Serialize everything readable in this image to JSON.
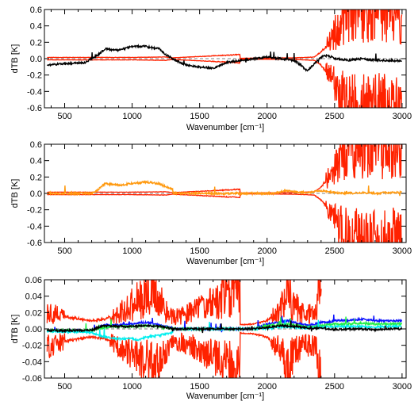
{
  "chart_data": [
    {
      "type": "line",
      "xlabel": "Wavenumber [cm⁻¹]",
      "ylabel": "dTB [K]",
      "xlim": [
        350,
        3030
      ],
      "ylim": [
        -0.6,
        0.6
      ],
      "xticks": [
        500,
        1000,
        1500,
        2000,
        2500,
        3000
      ],
      "yticks": [
        -0.6,
        -0.4,
        -0.2,
        0.0,
        0.2,
        0.4,
        0.6
      ],
      "ytick_labels": [
        "-0.6",
        "-0.4",
        "-0.2",
        "0.0",
        "0.2",
        "0.4",
        "0.6"
      ],
      "zero_line": true,
      "series": [
        {
          "color": "#ff2200",
          "style": "noise-envelope",
          "x": [
            370,
            700,
            1000,
            1250,
            1300,
            1800,
            1801,
            2200,
            2350,
            2400,
            2450,
            2500,
            2550,
            2600,
            2700,
            2800,
            2900,
            3000
          ],
          "y": [
            0.015,
            0.015,
            0.015,
            0.02,
            0.01,
            0.05,
            0.005,
            0.01,
            0.02,
            0.08,
            0.18,
            0.3,
            0.45,
            0.6,
            0.6,
            0.6,
            0.55,
            0.5
          ]
        },
        {
          "color": "#000000",
          "style": "signal",
          "x": [
            370,
            500,
            650,
            750,
            800,
            900,
            1000,
            1100,
            1200,
            1250,
            1300,
            1400,
            1500,
            1600,
            1700,
            1800,
            1900,
            2000,
            2100,
            2200,
            2250,
            2300,
            2350,
            2400,
            2450,
            2500,
            2600,
            2700,
            2800,
            2900,
            3000
          ],
          "y": [
            -0.08,
            -0.06,
            -0.05,
            0.05,
            0.12,
            0.1,
            0.15,
            0.15,
            0.12,
            0.05,
            0.0,
            -0.08,
            -0.1,
            -0.12,
            -0.05,
            -0.02,
            0.0,
            0.02,
            0.0,
            -0.02,
            -0.08,
            -0.15,
            -0.06,
            0.02,
            0.04,
            0.0,
            -0.02,
            0.0,
            -0.02,
            -0.02,
            -0.03
          ]
        }
      ]
    },
    {
      "type": "line",
      "xlabel": "Wavenumber [cm⁻¹]",
      "ylabel": "dTB [K]",
      "xlim": [
        350,
        3030
      ],
      "ylim": [
        -0.6,
        0.6
      ],
      "xticks": [
        500,
        1000,
        1500,
        2000,
        2500,
        3000
      ],
      "yticks": [
        -0.6,
        -0.4,
        -0.2,
        0.0,
        0.2,
        0.4,
        0.6
      ],
      "ytick_labels": [
        "-0.6",
        "-0.4",
        "-0.2",
        "0.0",
        "0.2",
        "0.4",
        "0.6"
      ],
      "zero_line": true,
      "series": [
        {
          "color": "#ff2200",
          "style": "noise-envelope",
          "x": [
            370,
            700,
            1000,
            1250,
            1300,
            1800,
            1801,
            2200,
            2350,
            2400,
            2450,
            2500,
            2550,
            2600,
            2700,
            2800,
            2900,
            3000
          ],
          "y": [
            0.015,
            0.015,
            0.015,
            0.02,
            0.01,
            0.05,
            0.005,
            0.01,
            0.02,
            0.08,
            0.18,
            0.3,
            0.45,
            0.6,
            0.6,
            0.6,
            0.55,
            0.5
          ]
        },
        {
          "color": "#ff9a10",
          "style": "signal",
          "x": [
            370,
            700,
            750,
            800,
            900,
            1000,
            1100,
            1200,
            1250,
            1300,
            1301,
            2050,
            2100,
            2150,
            2200,
            2300,
            2400,
            2500,
            2600,
            2700,
            2800,
            2900,
            3000
          ],
          "y": [
            0.0,
            0.0,
            0.05,
            0.12,
            0.1,
            0.12,
            0.14,
            0.12,
            0.08,
            0.05,
            0.0,
            0.0,
            0.02,
            0.03,
            0.02,
            0.01,
            0.03,
            0.01,
            0.0,
            0.01,
            0.0,
            0.01,
            0.01
          ]
        }
      ]
    },
    {
      "type": "line",
      "xlabel": "Wavenumber [cm⁻¹]",
      "ylabel": "dTB [K]",
      "xlim": [
        350,
        3030
      ],
      "ylim": [
        -0.06,
        0.06
      ],
      "xticks": [
        500,
        1000,
        1500,
        2000,
        2500,
        3000
      ],
      "yticks": [
        -0.06,
        -0.04,
        -0.02,
        0.0,
        0.02,
        0.04,
        0.06
      ],
      "ytick_labels": [
        "-0.06",
        "-0.04",
        "-0.02",
        "0.00",
        "0.02",
        "0.04",
        "0.06"
      ],
      "zero_line": true,
      "series": [
        {
          "color": "#ff2200",
          "style": "noise-envelope",
          "x": [
            370,
            500,
            700,
            800,
            900,
            1000,
            1100,
            1150,
            1200,
            1250,
            1300,
            1400,
            1500,
            1600,
            1700,
            1800,
            1801,
            1900,
            2000,
            2050,
            2100,
            2150,
            2200,
            2250,
            2300,
            2350,
            2400,
            2401
          ],
          "y": [
            0.022,
            0.015,
            0.01,
            0.012,
            0.02,
            0.03,
            0.04,
            0.048,
            0.04,
            0.025,
            0.015,
            0.018,
            0.025,
            0.032,
            0.042,
            0.056,
            0.005,
            0.006,
            0.01,
            0.018,
            0.025,
            0.045,
            0.03,
            0.022,
            0.02,
            0.02,
            0.06,
            0.06
          ]
        },
        {
          "color": "#0a10ff",
          "style": "signal",
          "x": [
            370,
            700,
            750,
            800,
            900,
            1000,
            1100,
            1200,
            1250,
            1300,
            1301,
            1900,
            1950,
            2000,
            2100,
            2150,
            2200,
            2300,
            2400,
            2450,
            2500,
            2600,
            2700,
            2800,
            2900,
            3000
          ],
          "y": [
            -0.002,
            -0.002,
            0.002,
            0.005,
            0.005,
            0.006,
            0.008,
            0.005,
            0.003,
            0.001,
            0.0,
            0.0,
            0.003,
            0.006,
            0.008,
            0.01,
            0.008,
            0.004,
            0.008,
            0.008,
            0.01,
            0.01,
            0.012,
            0.01,
            0.01,
            0.01
          ]
        },
        {
          "color": "#22ee44",
          "style": "signal",
          "x": [
            370,
            700,
            750,
            800,
            900,
            1000,
            1100,
            1200,
            1250,
            1300,
            1301,
            1900,
            1950,
            2000,
            2100,
            2150,
            2200,
            2300,
            2400,
            2450,
            2500,
            2600,
            2700,
            2800,
            2900,
            3000
          ],
          "y": [
            -0.002,
            -0.002,
            0.0,
            0.002,
            0.003,
            0.003,
            0.004,
            0.003,
            0.002,
            0.0,
            0.0,
            0.0,
            0.002,
            0.004,
            0.005,
            0.006,
            0.005,
            0.002,
            0.004,
            0.005,
            0.006,
            0.006,
            0.007,
            0.006,
            0.006,
            0.006
          ]
        },
        {
          "color": "#00eeee",
          "style": "signal",
          "x": [
            370,
            700,
            750,
            800,
            900,
            1000,
            1050,
            1100,
            1200,
            1250,
            1300,
            1301,
            1900,
            2000,
            2100,
            2200,
            2300,
            2400,
            2500,
            2600,
            2700,
            2800,
            2900,
            3000
          ],
          "y": [
            -0.003,
            -0.004,
            -0.008,
            -0.01,
            -0.012,
            -0.012,
            -0.014,
            -0.01,
            -0.008,
            -0.006,
            -0.004,
            0.0,
            0.0,
            0.001,
            0.002,
            0.002,
            0.001,
            0.002,
            0.003,
            0.003,
            0.003,
            0.002,
            0.003,
            0.003
          ]
        },
        {
          "color": "#000000",
          "style": "signal",
          "x": [
            370,
            700,
            750,
            800,
            900,
            1000,
            1100,
            1200,
            1250,
            1300,
            1301,
            1900,
            2000,
            2100,
            2200,
            2300,
            2400,
            2500,
            2600,
            2700,
            2800,
            2900,
            3000
          ],
          "y": [
            -0.002,
            -0.002,
            0.002,
            0.004,
            0.003,
            0.003,
            0.004,
            0.003,
            0.002,
            0.0,
            0.0,
            0.0,
            0.002,
            0.004,
            0.003,
            0.001,
            0.001,
            -0.001,
            0.0,
            0.0,
            -0.001,
            0.0,
            0.0
          ]
        }
      ]
    }
  ]
}
